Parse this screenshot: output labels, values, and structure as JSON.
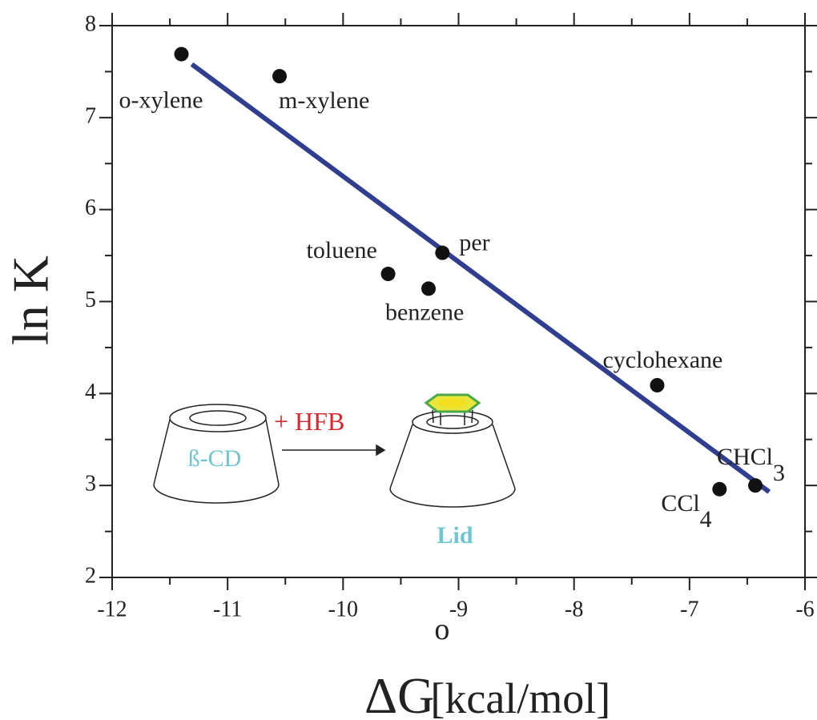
{
  "chart_data": {
    "type": "scatter",
    "xlabel": {
      "main": "ΔG",
      "sup": "o",
      "unit": "[kcal/mol]"
    },
    "ylabel": "ln K",
    "xlim": [
      -12,
      -6
    ],
    "xticks": [
      -12,
      -11,
      -10,
      -9,
      -8,
      -7,
      -6
    ],
    "xminorticks": [
      -11.5,
      -10.5,
      -9.5,
      -8.5,
      -7.5,
      -6.5
    ],
    "ylim": [
      2,
      8
    ],
    "yticks": [
      2,
      3,
      4,
      5,
      6,
      7,
      8
    ],
    "yminorticks": [
      2.5,
      3.5,
      4.5,
      5.5,
      6.5,
      7.5
    ],
    "point_color": "#111111",
    "points": [
      {
        "label": "o-xylene",
        "x": -11.4,
        "y": 7.69
      },
      {
        "label": "m-xylene",
        "x": -10.55,
        "y": 7.45
      },
      {
        "label": "toluene",
        "x": -9.61,
        "y": 5.3
      },
      {
        "label": "per",
        "x": -9.14,
        "y": 5.53
      },
      {
        "label": "benzene",
        "x": -9.26,
        "y": 5.14
      },
      {
        "label": "cyclohexane",
        "x": -7.28,
        "y": 4.09
      },
      {
        "label": "CCl",
        "sub": "4",
        "x": -6.74,
        "y": 2.96
      },
      {
        "label": "CHCl",
        "sub": "3",
        "x": -6.43,
        "y": 3.0
      }
    ],
    "fit": {
      "x": [
        -11.31,
        -6.31
      ],
      "y": [
        7.58,
        2.93
      ],
      "color": "#2f3e8e"
    },
    "annotations": {
      "reagent": "+ HFB",
      "host": "ß-CD",
      "product": "Lid"
    }
  }
}
